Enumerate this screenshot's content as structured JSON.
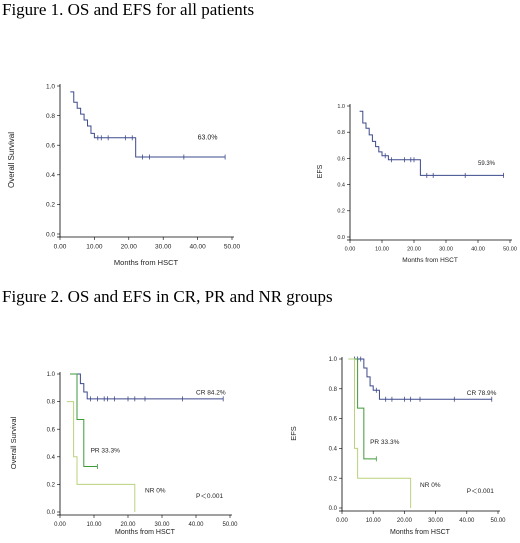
{
  "figures": [
    {
      "title": "Figure 1. OS and EFS for all patients"
    },
    {
      "title": "Figure 2. OS and EFS in CR, PR and NR groups"
    }
  ],
  "colors": {
    "blue": "#3d4a8c",
    "green": "#3f9a3a",
    "lightgreen": "#b9d27c",
    "axis": "#000000"
  },
  "chart_data": [
    {
      "id": "os-all",
      "type": "line",
      "step": true,
      "ylabel": "Overall Survival",
      "xlabel": "Months from HSCT",
      "xlim": [
        0,
        50
      ],
      "ylim": [
        0,
        1
      ],
      "xticks": [
        "0.00",
        "10.00",
        "20.00",
        "30.00",
        "40.00",
        "50.00"
      ],
      "yticks": [
        "0.0",
        "0.2",
        "0.4",
        "0.6",
        "0.8",
        "1.0"
      ],
      "grid": false,
      "series": [
        {
          "color": "blue",
          "x": [
            3,
            4,
            5,
            6,
            7,
            8,
            9,
            10,
            22,
            48
          ],
          "y": [
            0.96,
            0.89,
            0.85,
            0.81,
            0.77,
            0.73,
            0.68,
            0.65,
            0.52,
            0.52
          ],
          "censors": [
            [
              11,
              0.65
            ],
            [
              12,
              0.65
            ],
            [
              14,
              0.65
            ],
            [
              19,
              0.65
            ],
            [
              21,
              0.65
            ],
            [
              24,
              0.52
            ],
            [
              26,
              0.52
            ],
            [
              36,
              0.52
            ],
            [
              48,
              0.52
            ]
          ]
        }
      ],
      "annotations": [
        {
          "text": "63.0%",
          "x": 40,
          "y": 0.64
        }
      ]
    },
    {
      "id": "efs-all",
      "type": "line",
      "step": true,
      "ylabel": "EFS",
      "xlabel": "Months from HSCT",
      "xlim": [
        0,
        50
      ],
      "ylim": [
        0,
        1
      ],
      "xticks": [
        "0.00",
        "10.00",
        "20.00",
        "30.00",
        "40.00",
        "50.00"
      ],
      "yticks": [
        "0.0",
        "0.2",
        "0.4",
        "0.6",
        "0.8",
        "1.0"
      ],
      "grid": false,
      "series": [
        {
          "color": "blue",
          "x": [
            3,
            4,
            5,
            6,
            7,
            8,
            9,
            10,
            12,
            22,
            48
          ],
          "y": [
            0.96,
            0.87,
            0.83,
            0.78,
            0.73,
            0.69,
            0.65,
            0.62,
            0.59,
            0.47,
            0.47
          ],
          "censors": [
            [
              11,
              0.62
            ],
            [
              13,
              0.59
            ],
            [
              17,
              0.59
            ],
            [
              19,
              0.59
            ],
            [
              20,
              0.59
            ],
            [
              24,
              0.47
            ],
            [
              26,
              0.47
            ],
            [
              36,
              0.47
            ],
            [
              48,
              0.47
            ]
          ]
        }
      ],
      "annotations": [
        {
          "text": "59.3%",
          "x": 40,
          "y": 0.55
        }
      ]
    },
    {
      "id": "os-groups",
      "type": "line",
      "step": true,
      "ylabel": "Overall Survival",
      "xlabel": "Months from HSCT",
      "xlim": [
        0,
        50
      ],
      "ylim": [
        0,
        1
      ],
      "xticks": [
        "0.00",
        "10.00",
        "20.00",
        "30.00",
        "40.00",
        "50.00"
      ],
      "yticks": [
        "0.0",
        "0.2",
        "0.4",
        "0.6",
        "0.8",
        "1.0"
      ],
      "grid": false,
      "series": [
        {
          "color": "blue",
          "x": [
            3,
            6,
            7,
            8,
            48
          ],
          "y": [
            1.0,
            0.93,
            0.87,
            0.82,
            0.82
          ],
          "censors": [
            [
              9,
              0.82
            ],
            [
              11,
              0.82
            ],
            [
              13,
              0.82
            ],
            [
              14,
              0.82
            ],
            [
              16,
              0.82
            ],
            [
              20,
              0.82
            ],
            [
              22,
              0.82
            ],
            [
              25,
              0.82
            ],
            [
              36,
              0.82
            ],
            [
              48,
              0.82
            ]
          ]
        },
        {
          "color": "green",
          "x": [
            3,
            5,
            7,
            11
          ],
          "y": [
            1.0,
            0.67,
            0.33,
            0.33
          ],
          "censors": [
            [
              11,
              0.33
            ]
          ]
        },
        {
          "color": "lightgreen",
          "x": [
            2,
            4,
            5,
            22,
            22
          ],
          "y": [
            0.8,
            0.4,
            0.2,
            0.2,
            0.0
          ],
          "censors": []
        }
      ],
      "annotations": [
        {
          "text": "CR 84.2%",
          "x": 40,
          "y": 0.85
        },
        {
          "text": "PR 33.3%",
          "x": 9,
          "y": 0.43
        },
        {
          "text": "NR 0%",
          "x": 25,
          "y": 0.14
        },
        {
          "text": "P＜0.001",
          "x": 40,
          "y": 0.1
        }
      ]
    },
    {
      "id": "efs-groups",
      "type": "line",
      "step": true,
      "ylabel": "EFS",
      "xlabel": "Months from HSCT",
      "xlim": [
        0,
        50
      ],
      "ylim": [
        0,
        1
      ],
      "xticks": [
        "0.00",
        "10.00",
        "20.00",
        "30.00",
        "40.00",
        "50.00"
      ],
      "yticks": [
        "0.0",
        "0.2",
        "0.4",
        "0.6",
        "0.8",
        "1.0"
      ],
      "grid": false,
      "series": [
        {
          "color": "blue",
          "x": [
            3,
            7,
            8,
            9,
            10,
            12,
            48
          ],
          "y": [
            1.0,
            0.94,
            0.88,
            0.82,
            0.79,
            0.73,
            0.73
          ],
          "censors": [
            [
              4,
              1.0
            ],
            [
              5,
              1.0
            ],
            [
              6,
              1.0
            ],
            [
              11,
              0.79
            ],
            [
              14,
              0.73
            ],
            [
              16,
              0.73
            ],
            [
              20,
              0.73
            ],
            [
              22,
              0.73
            ],
            [
              25,
              0.73
            ],
            [
              36,
              0.73
            ],
            [
              48,
              0.73
            ]
          ]
        },
        {
          "color": "green",
          "x": [
            3,
            5,
            7,
            11
          ],
          "y": [
            1.0,
            0.67,
            0.33,
            0.33
          ],
          "censors": [
            [
              11,
              0.33
            ]
          ]
        },
        {
          "color": "lightgreen",
          "x": [
            2,
            4,
            5,
            22,
            22
          ],
          "y": [
            1.0,
            0.4,
            0.2,
            0.2,
            0.0
          ],
          "censors": []
        }
      ],
      "annotations": [
        {
          "text": "CR 78.9%",
          "x": 40,
          "y": 0.76
        },
        {
          "text": "PR 33.3%",
          "x": 9,
          "y": 0.43
        },
        {
          "text": "NR 0%",
          "x": 25,
          "y": 0.14
        },
        {
          "text": "P＜0.001",
          "x": 40,
          "y": 0.1
        }
      ]
    }
  ]
}
